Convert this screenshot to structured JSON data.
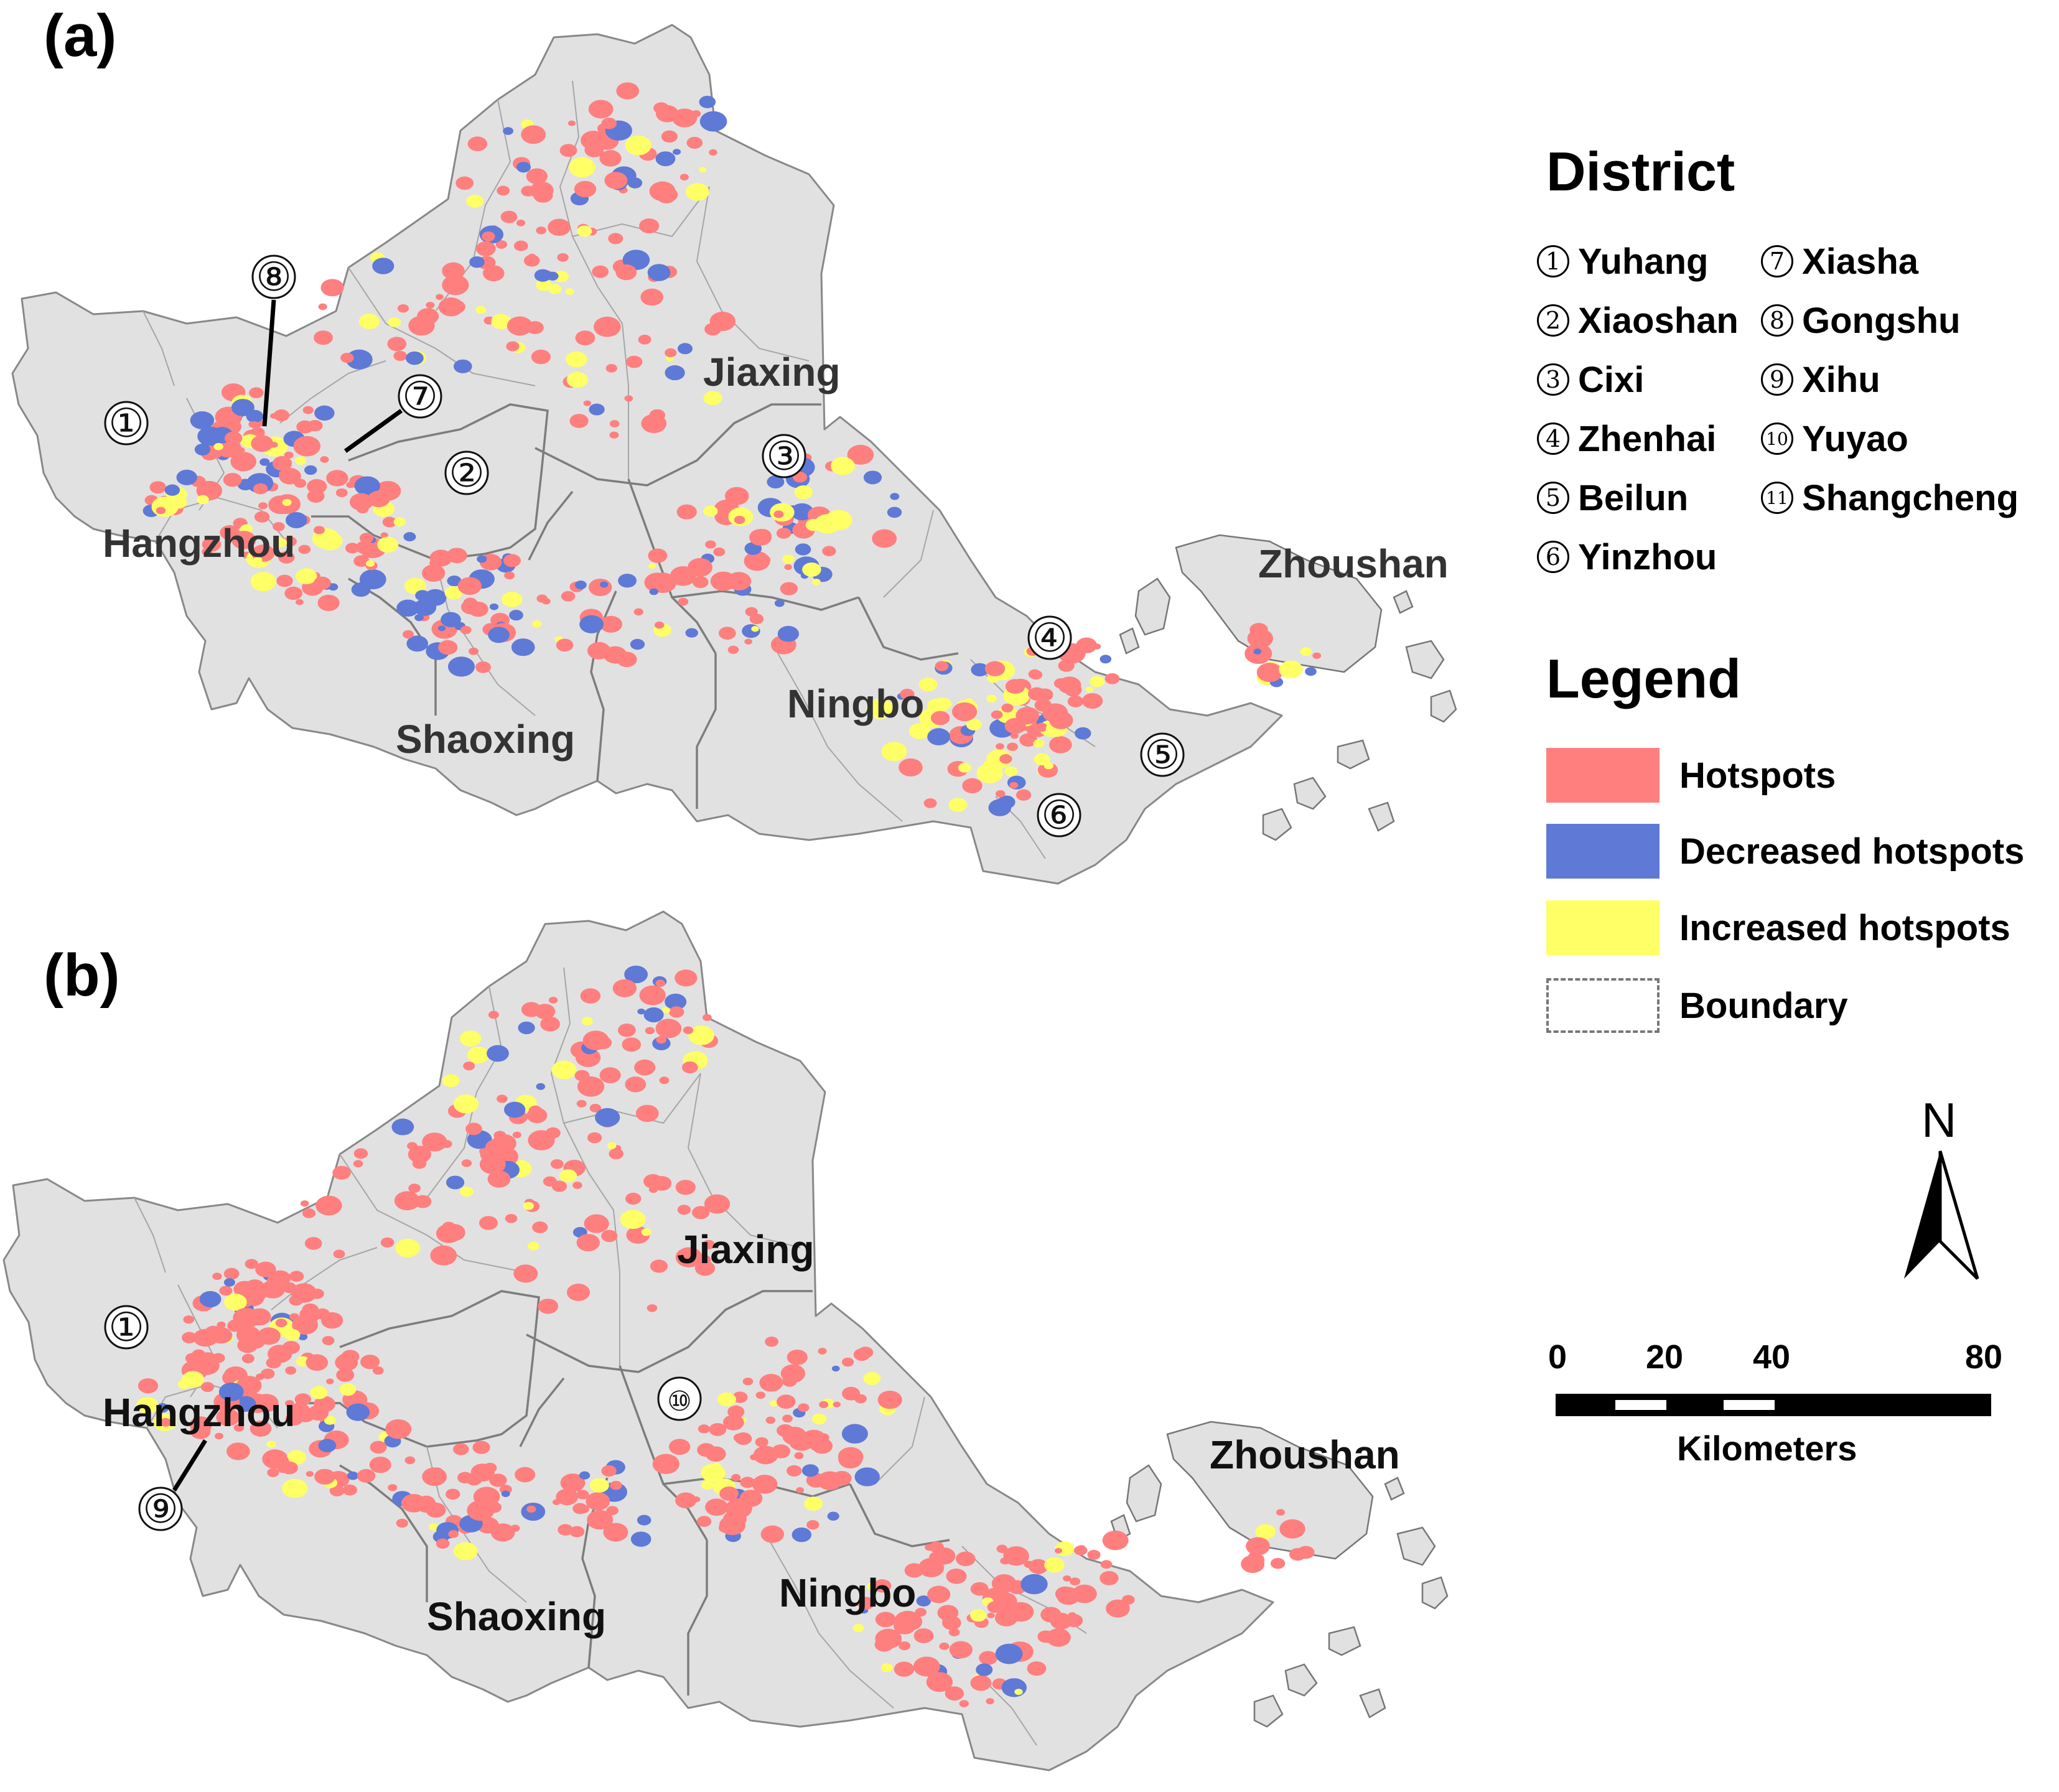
{
  "panels": {
    "a": {
      "label": "(a)",
      "regions": {
        "hangzhou": "Hangzhou",
        "jiaxing": "Jiaxing",
        "shaoxing": "Shaoxing",
        "ningbo": "Ningbo",
        "zhoushan": "Zhoushan"
      },
      "markers": [
        "①",
        "②",
        "③",
        "④",
        "⑤",
        "⑥",
        "⑦",
        "⑧"
      ]
    },
    "b": {
      "label": "(b)",
      "regions": {
        "hangzhou": "Hangzhou",
        "jiaxing": "Jiaxing",
        "shaoxing": "Shaoxing",
        "ningbo": "Ningbo",
        "zhoushan": "Zhoushan"
      },
      "markers": [
        "①",
        "⑨",
        "⑩"
      ]
    }
  },
  "district_legend": {
    "title": "District",
    "items": [
      {
        "num": "①",
        "name": "Yuhang"
      },
      {
        "num": "②",
        "name": "Xiaoshan"
      },
      {
        "num": "③",
        "name": "Cixi"
      },
      {
        "num": "④",
        "name": "Zhenhai"
      },
      {
        "num": "⑤",
        "name": "Beilun"
      },
      {
        "num": "⑥",
        "name": "Yinzhou"
      },
      {
        "num": "⑦",
        "name": "Xiasha"
      },
      {
        "num": "⑧",
        "name": "Gongshu"
      },
      {
        "num": "⑨",
        "name": "Xihu"
      },
      {
        "num": "⑩",
        "name": "Yuyao"
      },
      {
        "num": "⑪",
        "name": "Shangcheng"
      }
    ]
  },
  "legend": {
    "title": "Legend",
    "items": [
      {
        "label": "Hotspots",
        "color": "#ff7f7f"
      },
      {
        "label": "Decreased hotspots",
        "color": "#5f79d6"
      },
      {
        "label": "Increased hotspots",
        "color": "#ffff66"
      },
      {
        "label": "Boundary",
        "color": "#777777"
      }
    ]
  },
  "north_arrow": {
    "label": "N"
  },
  "scale_bar": {
    "ticks": [
      "0",
      "20",
      "40",
      "80"
    ],
    "unit": "Kilometers"
  },
  "colors": {
    "hotspot": "#ff7f7f",
    "decreased": "#5f79d6",
    "increased": "#ffff66",
    "land": "#e1e1e1"
  }
}
